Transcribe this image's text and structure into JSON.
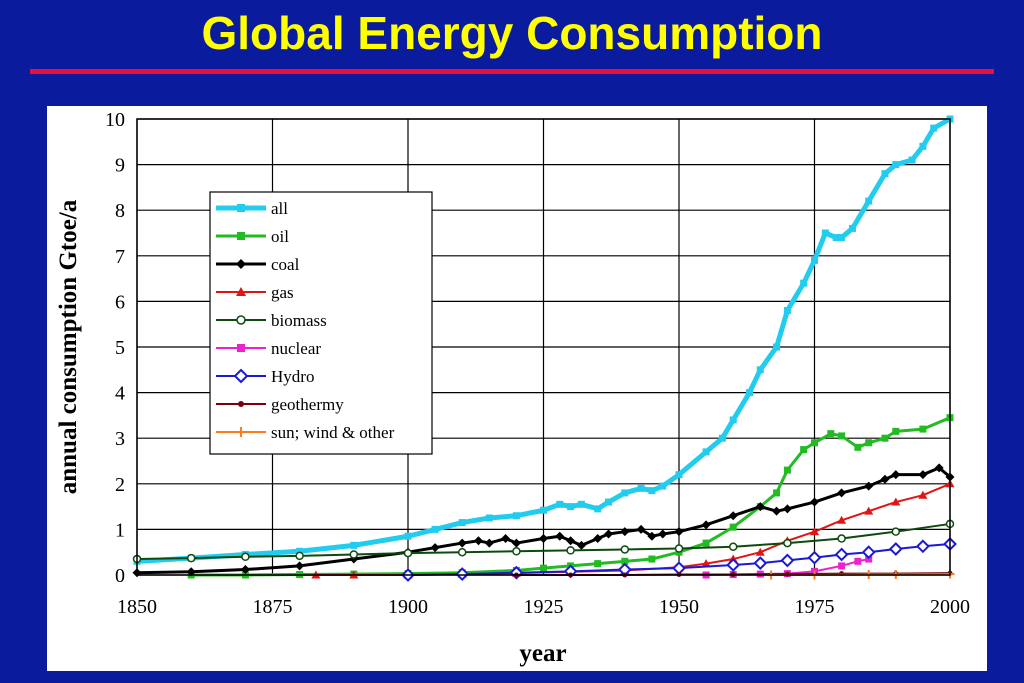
{
  "slide": {
    "title": "Global Energy Consumption"
  },
  "chart_data": {
    "type": "line",
    "xlabel": "year",
    "ylabel": "annual consumption Gtoe/a",
    "xlim": [
      1850,
      2000
    ],
    "ylim": [
      0,
      10
    ],
    "xticks": [
      1850,
      1875,
      1900,
      1925,
      1950,
      1975,
      2000
    ],
    "yticks": [
      0,
      1,
      2,
      3,
      4,
      5,
      6,
      7,
      8,
      9,
      10
    ],
    "grid": true,
    "legend_position": "upper-left",
    "series": [
      {
        "name": "all",
        "color": "#22ccee",
        "marker": "square",
        "width": 5,
        "x": [
          1850,
          1860,
          1870,
          1880,
          1890,
          1900,
          1905,
          1910,
          1915,
          1920,
          1925,
          1928,
          1930,
          1932,
          1935,
          1937,
          1940,
          1943,
          1945,
          1947,
          1950,
          1955,
          1958,
          1960,
          1963,
          1965,
          1968,
          1970,
          1973,
          1975,
          1977,
          1979,
          1980,
          1982,
          1985,
          1988,
          1990,
          1993,
          1995,
          1997,
          2000
        ],
        "y": [
          0.3,
          0.37,
          0.45,
          0.52,
          0.65,
          0.85,
          1.0,
          1.15,
          1.25,
          1.3,
          1.42,
          1.55,
          1.5,
          1.55,
          1.45,
          1.6,
          1.8,
          1.9,
          1.85,
          1.95,
          2.2,
          2.7,
          3.0,
          3.4,
          4.0,
          4.5,
          5.0,
          5.8,
          6.4,
          6.9,
          7.5,
          7.4,
          7.4,
          7.6,
          8.2,
          8.8,
          9.0,
          9.1,
          9.4,
          9.8,
          10.0
        ]
      },
      {
        "name": "oil",
        "color": "#22bb22",
        "marker": "square",
        "width": 3,
        "x": [
          1860,
          1870,
          1880,
          1890,
          1900,
          1910,
          1920,
          1925,
          1930,
          1935,
          1940,
          1945,
          1950,
          1955,
          1960,
          1965,
          1968,
          1970,
          1973,
          1975,
          1978,
          1980,
          1983,
          1985,
          1988,
          1990,
          1995,
          2000
        ],
        "y": [
          0.0,
          0.0,
          0.01,
          0.02,
          0.03,
          0.05,
          0.1,
          0.15,
          0.2,
          0.25,
          0.3,
          0.35,
          0.5,
          0.7,
          1.05,
          1.5,
          1.8,
          2.3,
          2.75,
          2.9,
          3.1,
          3.05,
          2.8,
          2.9,
          3.0,
          3.15,
          3.2,
          3.45
        ]
      },
      {
        "name": "coal",
        "color": "#000000",
        "marker": "diamond",
        "width": 3,
        "x": [
          1850,
          1860,
          1870,
          1880,
          1890,
          1900,
          1905,
          1910,
          1913,
          1915,
          1918,
          1920,
          1925,
          1928,
          1930,
          1932,
          1935,
          1937,
          1940,
          1943,
          1945,
          1947,
          1950,
          1955,
          1960,
          1965,
          1968,
          1970,
          1975,
          1980,
          1985,
          1988,
          1990,
          1995,
          1998,
          2000
        ],
        "y": [
          0.05,
          0.07,
          0.12,
          0.2,
          0.35,
          0.5,
          0.6,
          0.7,
          0.75,
          0.7,
          0.8,
          0.7,
          0.8,
          0.85,
          0.75,
          0.65,
          0.8,
          0.9,
          0.95,
          1.0,
          0.85,
          0.9,
          0.95,
          1.1,
          1.3,
          1.5,
          1.4,
          1.45,
          1.6,
          1.8,
          1.95,
          2.1,
          2.2,
          2.2,
          2.35,
          2.15
        ]
      },
      {
        "name": "gas",
        "color": "#e01515",
        "marker": "triangle",
        "width": 2,
        "x": [
          1883,
          1890,
          1900,
          1910,
          1920,
          1930,
          1940,
          1950,
          1955,
          1960,
          1965,
          1970,
          1975,
          1980,
          1985,
          1990,
          1995,
          2000
        ],
        "y": [
          0.0,
          0.0,
          0.0,
          0.02,
          0.04,
          0.07,
          0.1,
          0.17,
          0.25,
          0.35,
          0.5,
          0.75,
          0.95,
          1.2,
          1.4,
          1.6,
          1.75,
          2.0
        ]
      },
      {
        "name": "biomass",
        "color": "#0e4a10",
        "marker": "circle",
        "width": 2,
        "x": [
          1850,
          1860,
          1870,
          1880,
          1890,
          1900,
          1910,
          1920,
          1930,
          1940,
          1950,
          1960,
          1970,
          1980,
          1990,
          2000
        ],
        "y": [
          0.35,
          0.37,
          0.4,
          0.42,
          0.45,
          0.48,
          0.5,
          0.52,
          0.54,
          0.56,
          0.58,
          0.62,
          0.7,
          0.8,
          0.95,
          1.12
        ]
      },
      {
        "name": "nuclear",
        "color": "#ee22cc",
        "marker": "square",
        "width": 2,
        "x": [
          1955,
          1960,
          1965,
          1970,
          1975,
          1980,
          1983,
          1985
        ],
        "y": [
          0.0,
          0.01,
          0.02,
          0.03,
          0.08,
          0.2,
          0.3,
          0.35
        ]
      },
      {
        "name": "Hydro",
        "color": "#1a1ad6",
        "marker": "open-diamond",
        "width": 2,
        "x": [
          1900,
          1910,
          1920,
          1930,
          1940,
          1950,
          1960,
          1965,
          1970,
          1975,
          1980,
          1985,
          1990,
          1995,
          2000
        ],
        "y": [
          0.0,
          0.02,
          0.05,
          0.08,
          0.12,
          0.15,
          0.22,
          0.26,
          0.32,
          0.38,
          0.45,
          0.5,
          0.57,
          0.63,
          0.68
        ]
      },
      {
        "name": "geothermy",
        "color": "#7a0010",
        "marker": "dot",
        "width": 2,
        "x": [
          1920,
          1930,
          1940,
          1950,
          1960,
          1970,
          1980,
          1990,
          2000
        ],
        "y": [
          0.0,
          0.0,
          0.0,
          0.01,
          0.01,
          0.02,
          0.03,
          0.03,
          0.04
        ]
      },
      {
        "name": "sun; wind & other",
        "color": "#ff7a1a",
        "marker": "plus",
        "width": 2,
        "x": [
          1967,
          1975,
          1985,
          1990,
          2000
        ],
        "y": [
          0.0,
          0.0,
          0.01,
          0.01,
          0.02
        ]
      }
    ]
  }
}
